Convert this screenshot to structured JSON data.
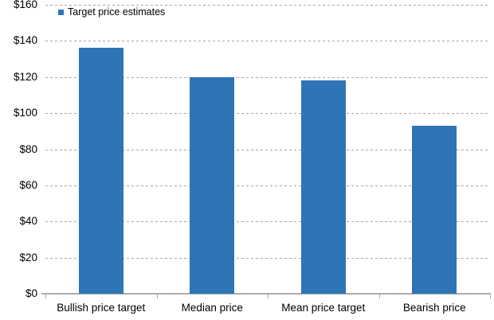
{
  "chart_data": {
    "type": "bar",
    "title": "",
    "xlabel": "",
    "ylabel": "",
    "legend": "Target price estimates",
    "legend_position": "top-left",
    "grid": true,
    "categories": [
      "Bullish price target",
      "Median price target",
      "Mean price target",
      "Bearish price target"
    ],
    "categories_wrapped": [
      [
        "Bullish price target"
      ],
      [
        "Median price",
        "target"
      ],
      [
        "Mean price target"
      ],
      [
        "Bearish price",
        "target"
      ]
    ],
    "values": [
      136,
      120,
      118,
      93
    ],
    "ylim": [
      0,
      160
    ],
    "y_ticks": [
      0,
      20,
      40,
      60,
      80,
      100,
      120,
      140,
      160
    ],
    "y_tick_labels": [
      "$0",
      "$20",
      "$40",
      "$60",
      "$80",
      "$100",
      "$120",
      "$140",
      "$160"
    ],
    "bar_color": "#2E75B6",
    "gridline_color": "#A6A6A6",
    "axis_color": "#ADADAD",
    "text_color": "#000000"
  }
}
